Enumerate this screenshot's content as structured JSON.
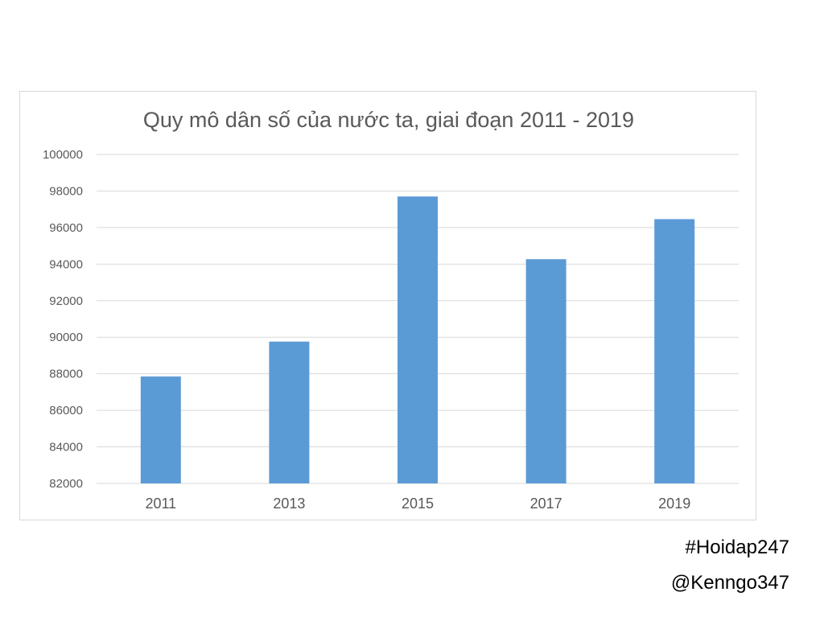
{
  "chart_data": {
    "type": "bar",
    "title": "Quy mô dân số của nước ta, giai đoạn 2011 - 2019",
    "xlabel": "",
    "ylabel": "",
    "categories": [
      "2011",
      "2013",
      "2015",
      "2017",
      "2019"
    ],
    "values": [
      87850,
      89760,
      97700,
      94270,
      96460
    ],
    "ylim": [
      82000,
      100000
    ],
    "yticks": [
      "82000",
      "84000",
      "86000",
      "88000",
      "90000",
      "92000",
      "94000",
      "96000",
      "98000",
      "100000"
    ],
    "grid": true,
    "legend": "none",
    "bar_color": "#5b9bd5",
    "grid_color": "#d9d9d9",
    "text_color": "#595959"
  },
  "watermark": {
    "hashtag": "#Hoidap247",
    "handle": "@Kenngo347"
  }
}
